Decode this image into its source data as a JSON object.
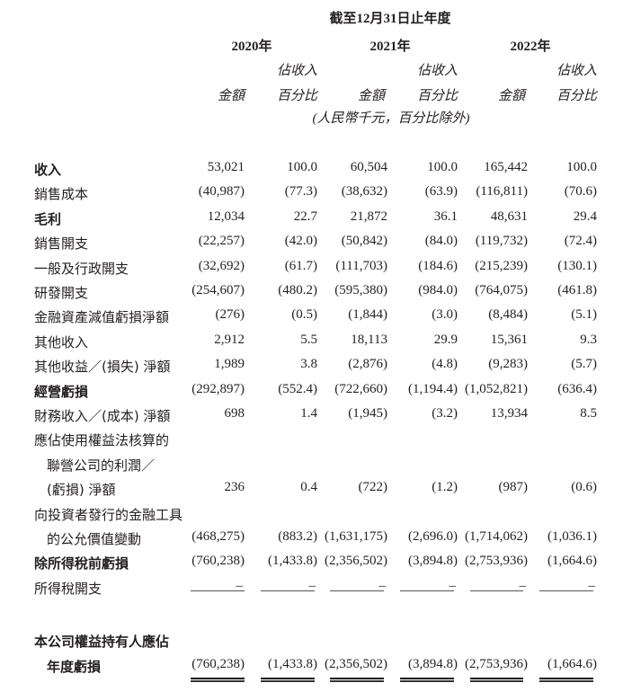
{
  "header": {
    "period_title": "截至12月31日止年度",
    "years": [
      "2020年",
      "2021年",
      "2022年"
    ],
    "pct_header_line1": "佔收入",
    "amount_header": "金額",
    "pct_header_line2": "百分比",
    "unit_note": "(人民幣千元，百分比除外)"
  },
  "rows": [
    {
      "label": [
        "收入"
      ],
      "bold": true,
      "values": [
        "53,021",
        "100.0",
        "60,504",
        "100.0",
        "165,442",
        "100.0"
      ]
    },
    {
      "label": [
        "銷售成本"
      ],
      "bold": false,
      "values": [
        "(40,987)",
        "(77.3)",
        "(38,632)",
        "(63.9)",
        "(116,811)",
        "(70.6)"
      ]
    },
    {
      "label": [
        "毛利"
      ],
      "bold": true,
      "values": [
        "12,034",
        "22.7",
        "21,872",
        "36.1",
        "48,631",
        "29.4"
      ]
    },
    {
      "label": [
        "銷售開支"
      ],
      "bold": false,
      "values": [
        "(22,257)",
        "(42.0)",
        "(50,842)",
        "(84.0)",
        "(119,732)",
        "(72.4)"
      ]
    },
    {
      "label": [
        "一般及行政開支"
      ],
      "bold": false,
      "values": [
        "(32,692)",
        "(61.7)",
        "(111,703)",
        "(184.6)",
        "(215,239)",
        "(130.1)"
      ]
    },
    {
      "label": [
        "研發開支"
      ],
      "bold": false,
      "values": [
        "(254,607)",
        "(480.2)",
        "(595,380)",
        "(984.0)",
        "(764,075)",
        "(461.8)"
      ]
    },
    {
      "label": [
        "金融資產減值虧損淨額"
      ],
      "bold": false,
      "values": [
        "(276)",
        "(0.5)",
        "(1,844)",
        "(3.0)",
        "(8,484)",
        "(5.1)"
      ]
    },
    {
      "label": [
        "其他收入"
      ],
      "bold": false,
      "values": [
        "2,912",
        "5.5",
        "18,113",
        "29.9",
        "15,361",
        "9.3"
      ]
    },
    {
      "label": [
        "其他收益／(損失) 淨額"
      ],
      "bold": false,
      "values": [
        "1,989",
        "3.8",
        "(2,876)",
        "(4.8)",
        "(9,283)",
        "(5.7)"
      ]
    },
    {
      "label": [
        "經營虧損"
      ],
      "bold": true,
      "values": [
        "(292,897)",
        "(552.4)",
        "(722,660)",
        "(1,194.4)",
        "(1,052,821)",
        "(636.4)"
      ]
    },
    {
      "label": [
        "財務收入／(成本) 淨額"
      ],
      "bold": false,
      "values": [
        "698",
        "1.4",
        "(1,945)",
        "(3.2)",
        "13,934",
        "8.5"
      ]
    },
    {
      "label": [
        "應佔使用權益法核算的",
        "聯營公司的利潤／",
        "(虧損) 淨額"
      ],
      "bold": false,
      "values": [
        "236",
        "0.4",
        "(722)",
        "(1.2)",
        "(987)",
        "(0.6)"
      ]
    },
    {
      "label": [
        "向投資者發行的金融工具",
        "的公允價值變動"
      ],
      "bold": false,
      "values": [
        "(468,275)",
        "(883.2)",
        "(1,631,175)",
        "(2,696.0)",
        "(1,714,062)",
        "(1,036.1)"
      ]
    },
    {
      "label": [
        "除所得稅前虧損"
      ],
      "bold": true,
      "values": [
        "(760,238)",
        "(1,433.8)",
        "(2,356,502)",
        "(3,894.8)",
        "(2,753,936)",
        "(1,664.6)"
      ]
    },
    {
      "label": [
        "所得稅開支"
      ],
      "bold": false,
      "values": [
        "–",
        "–",
        "–",
        "–",
        "–",
        "–"
      ],
      "underline": "single"
    },
    {
      "label": [
        "本公司權益持有人應佔",
        "年度虧損"
      ],
      "bold": true,
      "values": [
        "(760,238)",
        "(1,433.8)",
        "(2,356,502)",
        "(3,894.8)",
        "(2,753,936)",
        "(1,664.6)"
      ],
      "underline": "double",
      "gap_before": true
    }
  ]
}
